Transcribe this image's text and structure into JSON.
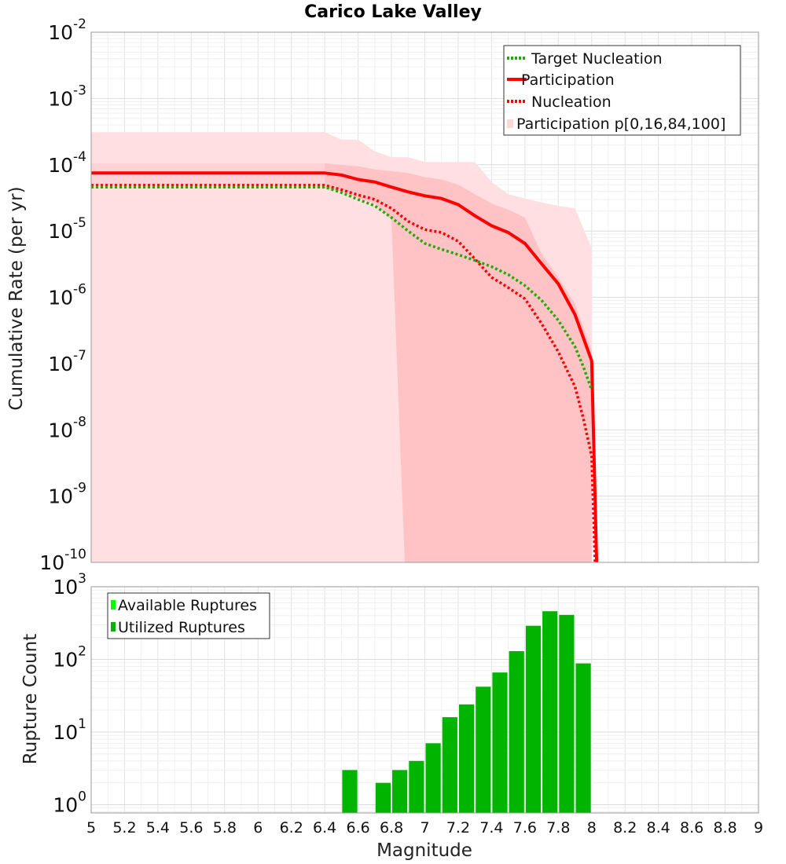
{
  "chart_data": [
    {
      "type": "line",
      "title": "Carico Lake Valley",
      "ylabel": "Cumulative Rate (per yr)",
      "xlim": [
        5,
        9
      ],
      "yscale": "log",
      "ylim": [
        1e-10,
        0.01
      ],
      "y_ticks": [
        {
          "base": "10",
          "exp": "-2"
        },
        {
          "base": "10",
          "exp": "-3"
        },
        {
          "base": "10",
          "exp": "-4"
        },
        {
          "base": "10",
          "exp": "-5"
        },
        {
          "base": "10",
          "exp": "-6"
        },
        {
          "base": "10",
          "exp": "-7"
        },
        {
          "base": "10",
          "exp": "-8"
        },
        {
          "base": "10",
          "exp": "-9"
        },
        {
          "base": "10",
          "exp": "-10"
        }
      ],
      "grid": true,
      "legend_position": "top-right",
      "colors": {
        "target": "#22aa00",
        "participation": "#ff0000",
        "nucleation": "#ff0000",
        "band_outer": "#ffdfe2",
        "band_inner": "#ffc2c5"
      },
      "series": [
        {
          "name": "Target Nucleation",
          "style": "dotted",
          "x": [
            5.0,
            5.5,
            6.0,
            6.4,
            6.5,
            6.6,
            6.7,
            6.8,
            6.9,
            7.0,
            7.1,
            7.2,
            7.3,
            7.4,
            7.5,
            7.6,
            7.7,
            7.8,
            7.9,
            7.95,
            8.0
          ],
          "y": [
            4.6e-05,
            4.6e-05,
            4.6e-05,
            4.6e-05,
            3.8e-05,
            3e-05,
            2.4e-05,
            1.6e-05,
            1e-05,
            6.5e-06,
            5.3e-06,
            4.4e-06,
            3.6e-06,
            2.9e-06,
            2.2e-06,
            1.5e-06,
            9e-07,
            4.5e-07,
            1.8e-07,
            9e-08,
            4e-08
          ]
        },
        {
          "name": "Participation",
          "style": "solid",
          "x": [
            5.0,
            6.0,
            6.4,
            6.5,
            6.6,
            6.7,
            6.8,
            6.9,
            7.0,
            7.1,
            7.2,
            7.3,
            7.4,
            7.5,
            7.6,
            7.7,
            7.8,
            7.9,
            8.0,
            8.03
          ],
          "y": [
            7.5e-05,
            7.5e-05,
            7.5e-05,
            7e-05,
            6e-05,
            5.5e-05,
            4.6e-05,
            3.9e-05,
            3.4e-05,
            3.1e-05,
            2.5e-05,
            1.7e-05,
            1.2e-05,
            9.5e-06,
            6.5e-06,
            3.2e-06,
            1.6e-06,
            5.5e-07,
            1.1e-07,
            1e-10
          ]
        },
        {
          "name": "Nucleation",
          "style": "dotted",
          "x": [
            5.0,
            6.0,
            6.4,
            6.5,
            6.6,
            6.7,
            6.8,
            6.9,
            7.0,
            7.1,
            7.2,
            7.3,
            7.4,
            7.5,
            7.6,
            7.7,
            7.8,
            7.9,
            7.95,
            8.0,
            8.02
          ],
          "y": [
            4.9e-05,
            4.9e-05,
            4.9e-05,
            4.2e-05,
            3.5e-05,
            3e-05,
            2.2e-05,
            1.4e-05,
            1.05e-05,
            9.5e-06,
            7e-06,
            3.8e-06,
            2e-06,
            1.4e-06,
            9.5e-07,
            4e-07,
            1.5e-07,
            4.5e-08,
            1.5e-08,
            4e-09,
            1e-10
          ]
        },
        {
          "name": "Participation p[0,16,84,100]",
          "type": "band",
          "outer_x": [
            5.0,
            6.4,
            6.5,
            6.6,
            6.7,
            6.8,
            6.9,
            7.0,
            7.1,
            7.2,
            7.3,
            7.4,
            7.5,
            7.6,
            7.7,
            7.8,
            7.9,
            8.0
          ],
          "outer_hi": [
            0.00031,
            0.00031,
            0.00024,
            0.00024,
            0.00016,
            0.00013,
            0.00013,
            0.00011,
            0.00011,
            0.00011,
            0.00011,
            5.5e-05,
            3.6e-05,
            3.1e-05,
            2.7e-05,
            2.4e-05,
            2.2e-05,
            5.5e-06
          ],
          "inner_x": [
            5.0,
            6.4,
            6.5,
            6.6,
            6.7,
            6.8,
            6.9,
            7.0,
            7.1,
            7.2,
            7.3,
            7.4,
            7.5,
            7.6,
            7.7,
            7.8,
            7.9,
            8.0
          ],
          "inner_hi": [
            0.000105,
            0.000105,
            0.0001,
            9.5e-05,
            8.5e-05,
            8e-05,
            7.5e-05,
            6.5e-05,
            6e-05,
            5e-05,
            3.6e-05,
            2.6e-05,
            2.1e-05,
            1.6e-05,
            4.5e-06,
            2e-06,
            8e-07,
            1.6e-07
          ],
          "inner_lo_x": [
            5.0,
            6.4,
            6.5,
            6.6,
            6.7,
            6.75,
            6.8,
            6.85,
            6.88,
            7.0,
            7.2,
            7.4,
            7.6,
            7.8,
            8.0
          ],
          "inner_lo": [
            1e-10,
            1e-10,
            1e-10,
            1e-10,
            1e-10,
            1e-10,
            1e-10,
            1e-05,
            1e-10,
            1e-10,
            1e-10,
            1e-10,
            1e-10,
            1e-10,
            1e-10
          ]
        }
      ]
    },
    {
      "type": "bar",
      "xlabel": "Magnitude",
      "ylabel": "Rupture Count",
      "xlim": [
        5,
        9
      ],
      "yscale": "log",
      "ylim": [
        0.77,
        1000
      ],
      "y_ticks": [
        {
          "base": "10",
          "exp": "0"
        },
        {
          "base": "10",
          "exp": "1"
        },
        {
          "base": "10",
          "exp": "2"
        },
        {
          "base": "10",
          "exp": "3"
        }
      ],
      "x_ticks": [
        "5",
        "5.2",
        "5.4",
        "5.6",
        "5.8",
        "6",
        "6.2",
        "6.4",
        "6.6",
        "6.8",
        "7",
        "7.2",
        "7.4",
        "7.6",
        "7.8",
        "8",
        "8.2",
        "8.4",
        "8.6",
        "8.8",
        "9"
      ],
      "grid": true,
      "legend_position": "top-left",
      "bin_width": 0.1,
      "colors": {
        "available": "#00ff00",
        "utilized": "#00b400"
      },
      "legend": [
        "Available Ruptures",
        "Utilized Ruptures"
      ],
      "x": [
        6.55,
        6.75,
        6.85,
        6.95,
        7.05,
        7.15,
        7.25,
        7.35,
        7.45,
        7.55,
        7.65,
        7.75,
        7.85,
        7.95
      ],
      "values": [
        3,
        2,
        3,
        4,
        7,
        16,
        24,
        42,
        66,
        130,
        290,
        460,
        410,
        88
      ]
    }
  ]
}
